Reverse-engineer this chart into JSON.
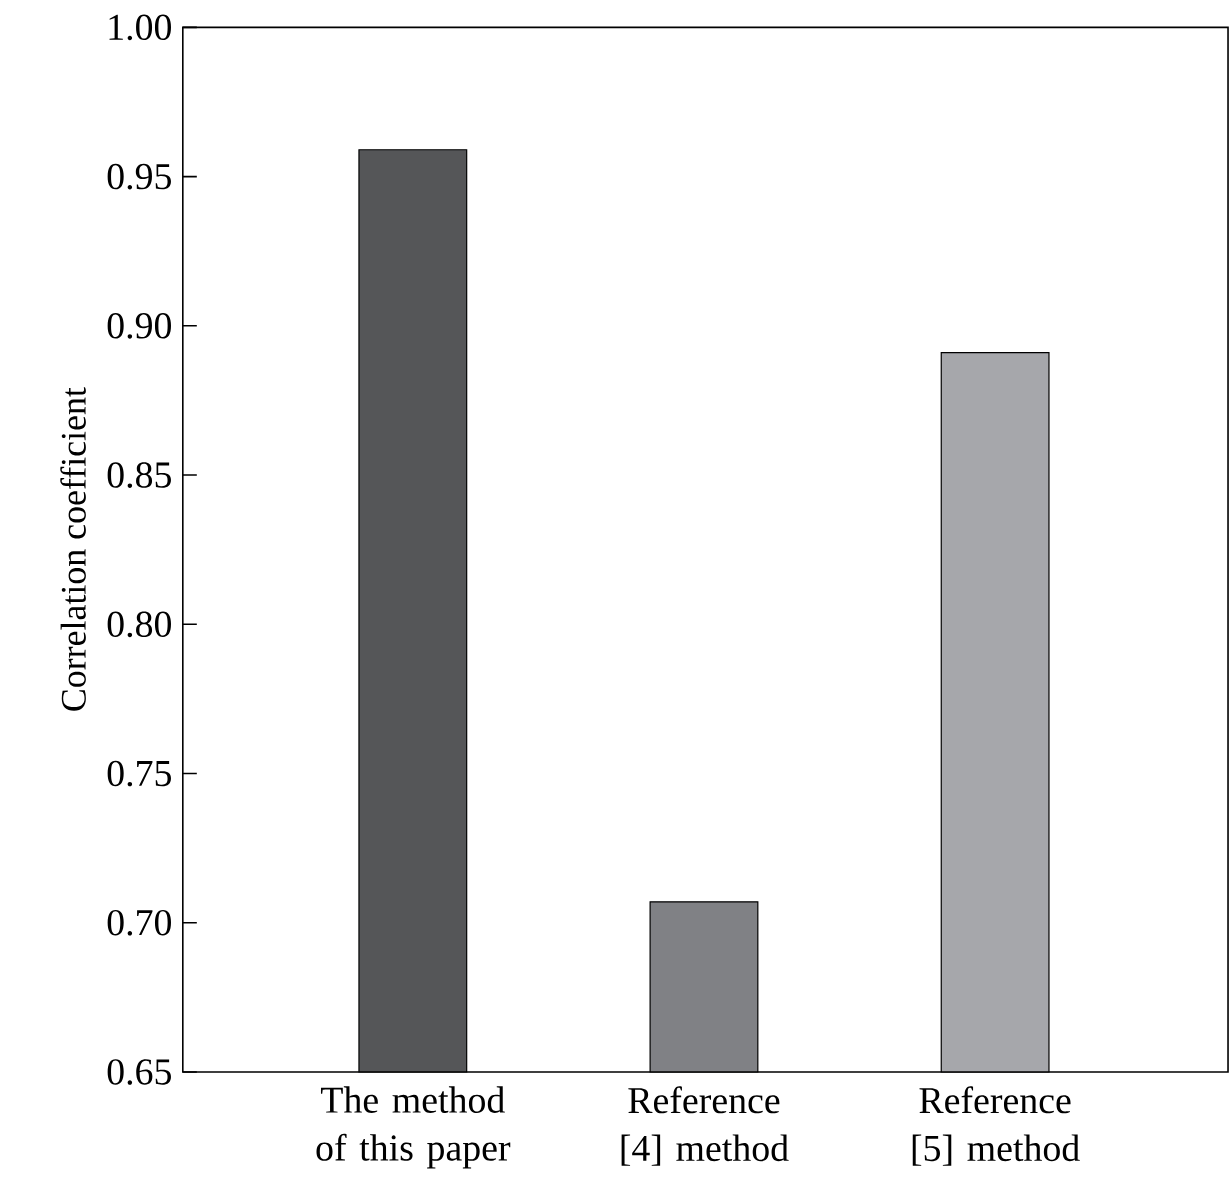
{
  "chart_data": {
    "type": "bar",
    "ylabel": "Correlation coefficient",
    "categories": [
      "The method of this paper",
      "Reference [4] method",
      "Reference [5] method"
    ],
    "values": [
      0.959,
      0.707,
      0.891
    ],
    "colors": [
      "#555658",
      "#808185",
      "#a6a7ab"
    ],
    "ylim": [
      0.65,
      1.0
    ],
    "yticks": [
      {
        "value": 0.65,
        "label": "0.65"
      },
      {
        "value": 0.7,
        "label": "0.70"
      },
      {
        "value": 0.75,
        "label": "0.75"
      },
      {
        "value": 0.8,
        "label": "0.80"
      },
      {
        "value": 0.85,
        "label": "0.85"
      },
      {
        "value": 0.9,
        "label": "0.90"
      },
      {
        "value": 0.95,
        "label": "0.95"
      },
      {
        "value": 1.0,
        "label": "1.00"
      }
    ],
    "grid": false,
    "legend": false
  }
}
